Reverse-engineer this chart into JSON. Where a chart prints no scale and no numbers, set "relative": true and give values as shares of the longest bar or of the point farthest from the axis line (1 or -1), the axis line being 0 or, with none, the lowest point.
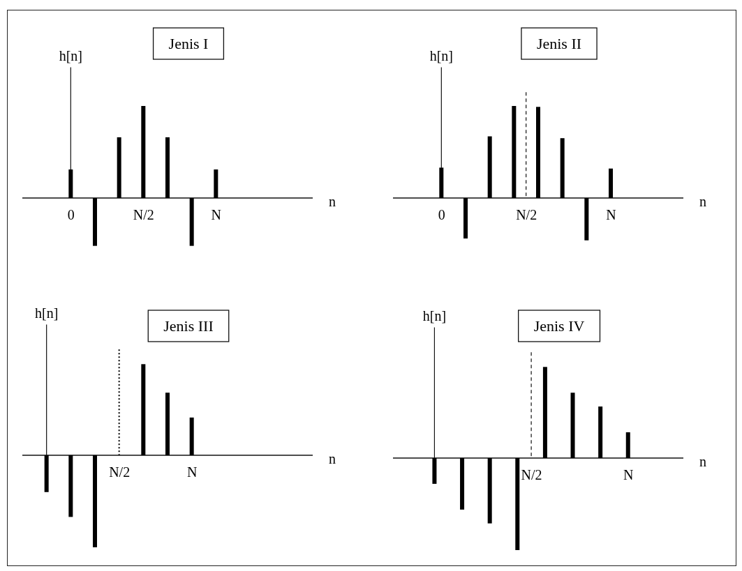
{
  "chart_data": [
    {
      "type": "bar",
      "title": "Jenis I",
      "xlabel": "n",
      "ylabel": "h[n]",
      "relative": true,
      "color": "#000000",
      "categories": [
        null,
        null,
        "0",
        null,
        null,
        "N/2",
        null,
        null,
        "N",
        null,
        null,
        null,
        null
      ],
      "values": [
        null,
        null,
        0.31,
        -0.52,
        0.66,
        1,
        0.66,
        -0.52,
        0.31,
        null,
        null,
        null,
        null
      ]
    },
    {
      "type": "bar",
      "title": "Jenis II",
      "xlabel": "n",
      "ylabel": "h[n]",
      "relative": true,
      "color": "#000000",
      "categories": [
        null,
        null,
        null,
        null,
        "0",
        null,
        null,
        null,
        null,
        null,
        null,
        "N/2",
        null,
        null,
        null,
        null,
        null,
        null,
        "N",
        null,
        null,
        null,
        null,
        null,
        null
      ],
      "values": [
        null,
        null,
        null,
        null,
        0.33,
        null,
        -0.44,
        null,
        0.67,
        null,
        1,
        null,
        0.99,
        null,
        0.65,
        null,
        -0.46,
        null,
        0.32,
        null,
        null,
        null,
        null,
        null,
        null
      ],
      "ref_lines": [
        {
          "axis": "x",
          "value": "N/2",
          "line_style": "dashed"
        }
      ]
    },
    {
      "type": "bar",
      "title": "Jenis III",
      "xlabel": "n",
      "ylabel": "h[n]",
      "relative": true,
      "color": "#000000",
      "categories": [
        null,
        null,
        null,
        null,
        "N/2",
        null,
        null,
        "N",
        null,
        null,
        null,
        null,
        null
      ],
      "values": [
        null,
        -0.4,
        -0.67,
        -1,
        null,
        0.99,
        0.68,
        0.41,
        null,
        null,
        null,
        null,
        null
      ],
      "ref_lines": [
        {
          "axis": "x",
          "value": "N/2",
          "line_style": "dotted"
        }
      ]
    },
    {
      "type": "bar",
      "title": "Jenis IV",
      "xlabel": "n",
      "ylabel": "h[n]",
      "relative": true,
      "color": "#000000",
      "categories": [
        null,
        null,
        null,
        null,
        null,
        null,
        null,
        null,
        null,
        null,
        "N/2",
        null,
        null,
        null,
        null,
        null,
        null,
        "N",
        null,
        null,
        null,
        null
      ],
      "values": [
        null,
        null,
        null,
        -0.28,
        null,
        -0.56,
        null,
        -0.71,
        null,
        -1,
        null,
        0.99,
        null,
        0.71,
        null,
        0.56,
        null,
        0.28,
        null,
        null,
        null,
        null
      ],
      "ref_lines": [
        {
          "axis": "x",
          "value": "N/2",
          "line_style": "dashed"
        }
      ]
    }
  ]
}
